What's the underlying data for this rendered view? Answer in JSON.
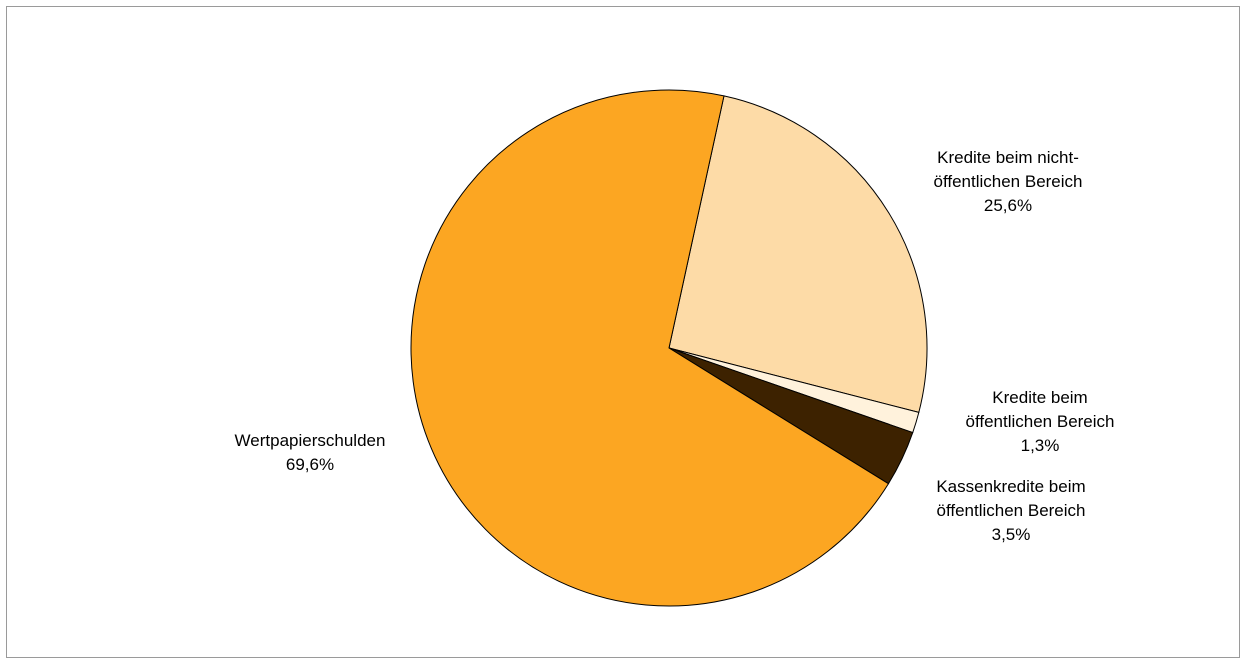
{
  "chart_data": {
    "type": "pie",
    "title": "",
    "legend": "none",
    "slices": [
      {
        "name": "Kredite beim nicht-öffentlichen Bereich",
        "label_lines": [
          "Kredite beim nicht-",
          "öffentlichen Bereich"
        ],
        "percent_label": "25,6%",
        "value": 25.6,
        "color": "#FDDBA7"
      },
      {
        "name": "Kredite beim öffentlichen Bereich",
        "label_lines": [
          "Kredite beim",
          "öffentlichen Bereich"
        ],
        "percent_label": "1,3%",
        "value": 1.3,
        "color": "#FFF2DC"
      },
      {
        "name": "Kassenkredite beim öffentlichen Bereich",
        "label_lines": [
          "Kassenkredite beim",
          "öffentlichen Bereich"
        ],
        "percent_label": "3,5%",
        "value": 3.5,
        "color": "#3D2200"
      },
      {
        "name": "Wertpapierschulden",
        "label_lines": [
          "Wertpapierschulden"
        ],
        "percent_label": "69,6%",
        "value": 69.6,
        "color": "#FCA622"
      }
    ]
  }
}
